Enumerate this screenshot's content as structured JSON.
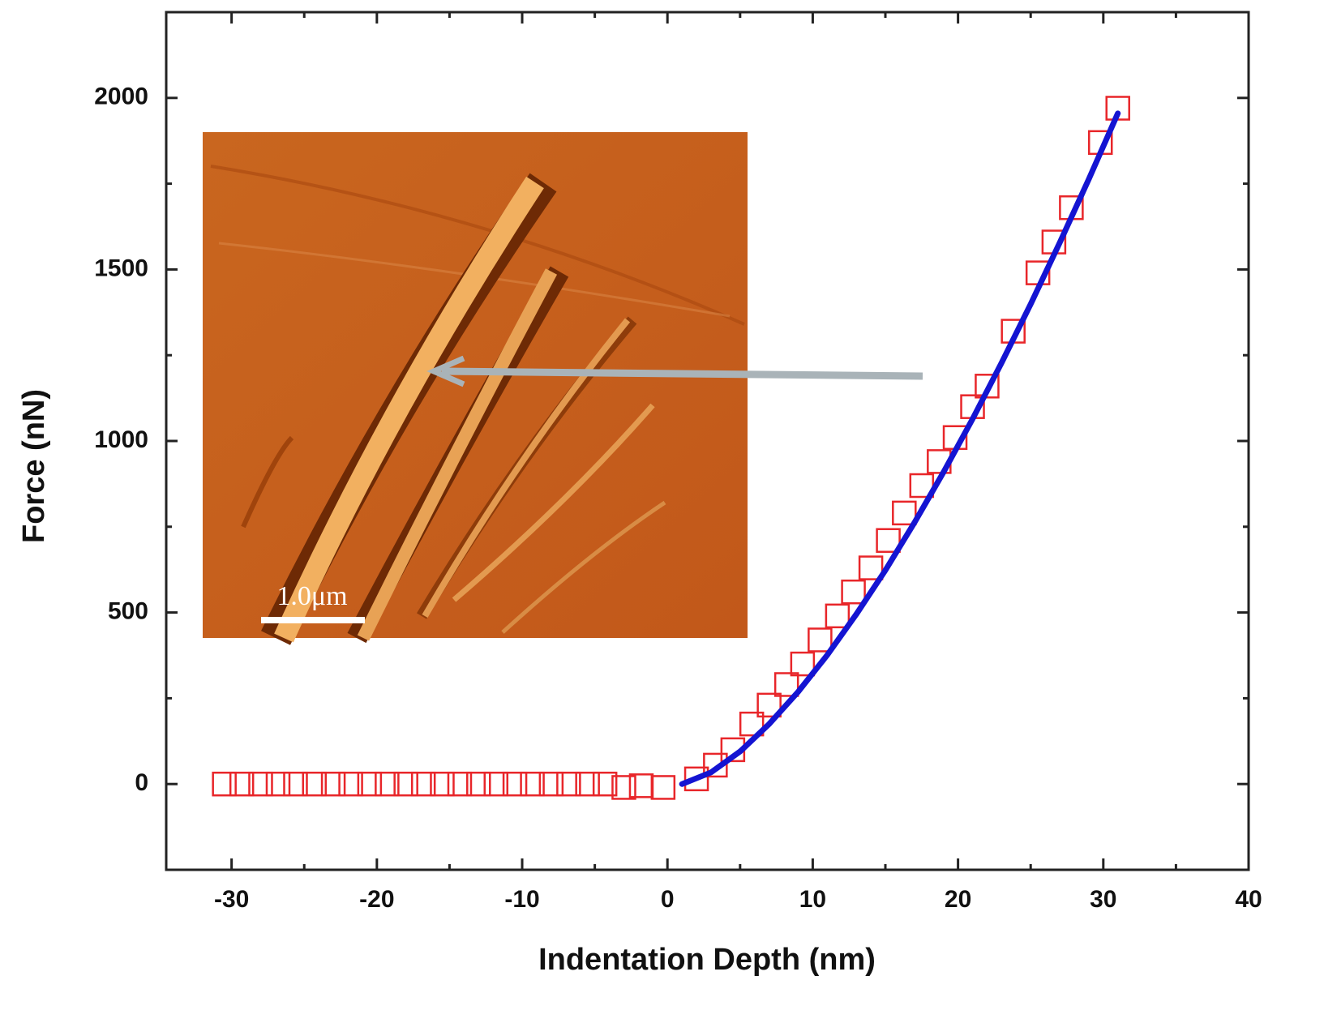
{
  "chart_data": {
    "type": "scatter",
    "x_label": "Indentation Depth (nm)",
    "y_label": "Force (nN)",
    "annotation": "1.0μm",
    "xlim": [
      -34.5,
      40
    ],
    "ylim": [
      -250,
      2250
    ],
    "xticks": [
      -30,
      -20,
      -10,
      0,
      10,
      20,
      30,
      40
    ],
    "yticks": [
      0,
      500,
      1000,
      1500,
      2000
    ],
    "xticks_minor": [
      -25,
      -15,
      -5,
      5,
      15,
      25,
      35
    ],
    "yticks_minor": [
      -250,
      250,
      750,
      1250,
      1750,
      2250
    ],
    "series": [
      {
        "color": "#e8262a",
        "marker": "square",
        "x": [
          -30.5,
          -29.3,
          -28,
          -26.8,
          -25.6,
          -24.3,
          -23,
          -21.8,
          -20.5,
          -19.3,
          -18,
          -16.8,
          -15.5,
          -14.3,
          -13,
          -11.8,
          -10.5,
          -9.3,
          -8,
          -6.8,
          -5.5,
          -4.3,
          -3,
          -1.8,
          -0.3,
          2.0,
          3.3,
          4.5,
          5.8,
          7.0,
          8.2,
          9.3,
          10.5,
          11.7,
          12.8,
          14.0,
          15.2,
          16.3,
          17.5,
          18.7,
          19.8,
          21.0,
          22.0,
          23.8,
          25.5,
          26.6,
          27.8,
          29.8,
          31.0
        ],
        "values": [
          0,
          0,
          0,
          0,
          0,
          0,
          0,
          0,
          0,
          0,
          0,
          0,
          0,
          0,
          0,
          0,
          0,
          0,
          0,
          0,
          0,
          0,
          -10,
          -5,
          -10,
          15,
          55,
          100,
          175,
          230,
          290,
          350,
          420,
          490,
          560,
          630,
          710,
          790,
          870,
          940,
          1010,
          1100,
          1160,
          1320,
          1490,
          1580,
          1680,
          1870,
          1970
        ]
      },
      {
        "color": "#1414d2",
        "marker": "line",
        "x": [
          1,
          3,
          5,
          7,
          9,
          11,
          13,
          15,
          17,
          19,
          21,
          23,
          25,
          27,
          29,
          31
        ],
        "values": [
          0,
          34,
          95,
          175,
          269,
          376,
          495,
          623,
          762,
          909,
          1064,
          1228,
          1399,
          1578,
          1763,
          1955
        ]
      }
    ]
  }
}
